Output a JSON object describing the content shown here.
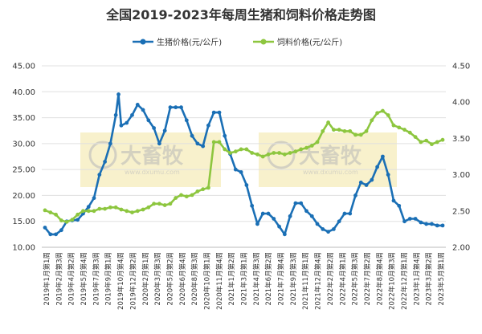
{
  "chart_data": {
    "type": "line",
    "title": "全国2019-2023年每周生猪和饲料价格走势图",
    "legend_position": "top",
    "grid": true,
    "y_left": {
      "min": 10,
      "max": 45,
      "ticks": [
        "10.00",
        "15.00",
        "20.00",
        "25.00",
        "30.00",
        "35.00",
        "40.00",
        "45.00"
      ]
    },
    "y_right": {
      "min": 2.0,
      "max": 4.5,
      "ticks": [
        "2.00",
        "2.50",
        "3.00",
        "3.50",
        "4.00",
        "4.50"
      ]
    },
    "x": [
      "2019年1月第1周",
      "2019年2月第3周",
      "2019年4月第2周",
      "2019年5月第4周",
      "2019年7月第3周",
      "2019年9月第1周",
      "2019年10月第4周",
      "2019年12月第2周",
      "2020年2月第1周",
      "2020年3月第3周",
      "2020年5月第2周",
      "2020年6月第4周",
      "2020年8月第3周",
      "2020年10月第1周",
      "2020年11月第4周",
      "2021年1月第2周",
      "2021年3月第1周",
      "2021年4月第3周",
      "2021年6月第2周",
      "2021年7月第4周",
      "2021年9月第3周",
      "2021年11月第1周",
      "2021年12月第4周",
      "2022年2月第2周",
      "2022年4月第1周",
      "2022年5月第3周",
      "2022年7月第2周",
      "2022年8月第4周",
      "2022年10月第3周",
      "2022年12月第1周",
      "2023年1月第4周",
      "2023年3月第2周",
      "2023年5月第1周"
    ],
    "xtick_labels": [
      "2019年1月第1周",
      "2019年2月第3周",
      "2019年4月第2周",
      "2019年5月第4周",
      "2019年7月第3周",
      "2019年9月第1周",
      "2019年10月第4周",
      "2019年12月第2周",
      "2020年2月第1周",
      "2020年3月第3周",
      "2020年5月第2周",
      "2020年6月第4周",
      "2020年8月第3周",
      "2020年10月第1周",
      "2020年11月第4周",
      "2021年1月第2周",
      "2021年3月第1周",
      "2021年4月第3周",
      "2021年6月第2周",
      "2021年7月第4周",
      "2021年9月第3周",
      "2021年11月第1周",
      "2021年12月第4周",
      "2022年2月第2周",
      "2022年4月第1周",
      "2022年5月第3周",
      "2022年7月第2周",
      "2022年8月第4周",
      "2022年10月第3周",
      "2022年12月第1周",
      "2023年1月第4周",
      "2023年3月第2周",
      "2023年5月第1周"
    ],
    "series": [
      {
        "name": "生猪价格(元/公斤)",
        "axis": "left",
        "color": "#1a6fb5",
        "values": [
          [
            0,
            13.8
          ],
          [
            1,
            12.5
          ],
          [
            2,
            12.5
          ],
          [
            3,
            13.3
          ],
          [
            4,
            15.0
          ],
          [
            5,
            15.2
          ],
          [
            6,
            15.3
          ],
          [
            7,
            16.5
          ],
          [
            8,
            17.8
          ],
          [
            9,
            19.5
          ],
          [
            10,
            24.0
          ],
          [
            11,
            26.5
          ],
          [
            12,
            30.0
          ],
          [
            13,
            35.5
          ],
          [
            13.5,
            39.5
          ],
          [
            14,
            33.5
          ],
          [
            15,
            34.0
          ],
          [
            16,
            35.5
          ],
          [
            17,
            37.5
          ],
          [
            18,
            36.5
          ],
          [
            19,
            34.5
          ],
          [
            20,
            33.0
          ],
          [
            21,
            30.0
          ],
          [
            22,
            32.5
          ],
          [
            23,
            37.0
          ],
          [
            24,
            37.0
          ],
          [
            25,
            37.0
          ],
          [
            26,
            34.5
          ],
          [
            27,
            31.5
          ],
          [
            28,
            30.0
          ],
          [
            29,
            29.5
          ],
          [
            30,
            33.5
          ],
          [
            31,
            36.0
          ],
          [
            32,
            36.0
          ],
          [
            33,
            31.5
          ],
          [
            34,
            28.0
          ],
          [
            35,
            25.0
          ],
          [
            36,
            24.5
          ],
          [
            37,
            22.0
          ],
          [
            38,
            18.0
          ],
          [
            39,
            14.5
          ],
          [
            40,
            16.5
          ],
          [
            41,
            16.5
          ],
          [
            42,
            15.5
          ],
          [
            43,
            14.0
          ],
          [
            44,
            12.5
          ],
          [
            45,
            16.0
          ],
          [
            46,
            18.5
          ],
          [
            47,
            18.5
          ],
          [
            48,
            17.0
          ],
          [
            49,
            16.0
          ],
          [
            50,
            14.5
          ],
          [
            51,
            13.5
          ],
          [
            52,
            13.0
          ],
          [
            53,
            13.5
          ],
          [
            54,
            15.0
          ],
          [
            55,
            16.5
          ],
          [
            56,
            16.5
          ],
          [
            57,
            20.0
          ],
          [
            58,
            22.5
          ],
          [
            59,
            22.0
          ],
          [
            60,
            23.0
          ],
          [
            61,
            25.5
          ],
          [
            62,
            27.5
          ],
          [
            63,
            24.0
          ],
          [
            64,
            19.0
          ],
          [
            65,
            18.0
          ],
          [
            66,
            15.0
          ],
          [
            67,
            15.5
          ],
          [
            68,
            15.5
          ],
          [
            69,
            14.8
          ],
          [
            70,
            14.5
          ],
          [
            71,
            14.5
          ],
          [
            72,
            14.2
          ],
          [
            73,
            14.2
          ]
        ]
      },
      {
        "name": "饲料价格(元/公斤)",
        "axis": "right",
        "color": "#8dc63f",
        "values": [
          [
            0,
            2.51
          ],
          [
            1,
            2.48
          ],
          [
            2,
            2.45
          ],
          [
            3,
            2.37
          ],
          [
            4,
            2.35
          ],
          [
            5,
            2.38
          ],
          [
            6,
            2.45
          ],
          [
            7,
            2.5
          ],
          [
            8,
            2.5
          ],
          [
            9,
            2.5
          ],
          [
            10,
            2.53
          ],
          [
            11,
            2.53
          ],
          [
            12,
            2.55
          ],
          [
            13,
            2.55
          ],
          [
            14,
            2.52
          ],
          [
            15,
            2.5
          ],
          [
            16,
            2.48
          ],
          [
            17,
            2.5
          ],
          [
            18,
            2.52
          ],
          [
            19,
            2.55
          ],
          [
            20,
            2.6
          ],
          [
            21,
            2.6
          ],
          [
            22,
            2.58
          ],
          [
            23,
            2.6
          ],
          [
            24,
            2.68
          ],
          [
            25,
            2.72
          ],
          [
            26,
            2.7
          ],
          [
            27,
            2.72
          ],
          [
            28,
            2.77
          ],
          [
            29,
            2.8
          ],
          [
            30,
            2.82
          ],
          [
            31,
            3.45
          ],
          [
            32,
            3.45
          ],
          [
            33,
            3.35
          ],
          [
            34,
            3.3
          ],
          [
            35,
            3.32
          ],
          [
            36,
            3.35
          ],
          [
            37,
            3.35
          ],
          [
            38,
            3.3
          ],
          [
            39,
            3.28
          ],
          [
            40,
            3.25
          ],
          [
            41,
            3.28
          ],
          [
            42,
            3.3
          ],
          [
            43,
            3.3
          ],
          [
            44,
            3.28
          ],
          [
            45,
            3.3
          ],
          [
            46,
            3.32
          ],
          [
            47,
            3.35
          ],
          [
            48,
            3.37
          ],
          [
            49,
            3.4
          ],
          [
            50,
            3.45
          ],
          [
            51,
            3.6
          ],
          [
            52,
            3.72
          ],
          [
            53,
            3.62
          ],
          [
            54,
            3.62
          ],
          [
            55,
            3.6
          ],
          [
            56,
            3.6
          ],
          [
            57,
            3.55
          ],
          [
            58,
            3.55
          ],
          [
            59,
            3.6
          ],
          [
            60,
            3.75
          ],
          [
            61,
            3.85
          ],
          [
            62,
            3.88
          ],
          [
            63,
            3.82
          ],
          [
            64,
            3.68
          ],
          [
            65,
            3.65
          ],
          [
            66,
            3.62
          ],
          [
            67,
            3.58
          ],
          [
            68,
            3.52
          ],
          [
            69,
            3.45
          ],
          [
            70,
            3.47
          ],
          [
            71,
            3.42
          ],
          [
            72,
            3.45
          ],
          [
            73,
            3.48
          ]
        ]
      }
    ]
  },
  "watermark": {
    "brand": "大畜牧",
    "sub": "www.dxumu.com"
  }
}
